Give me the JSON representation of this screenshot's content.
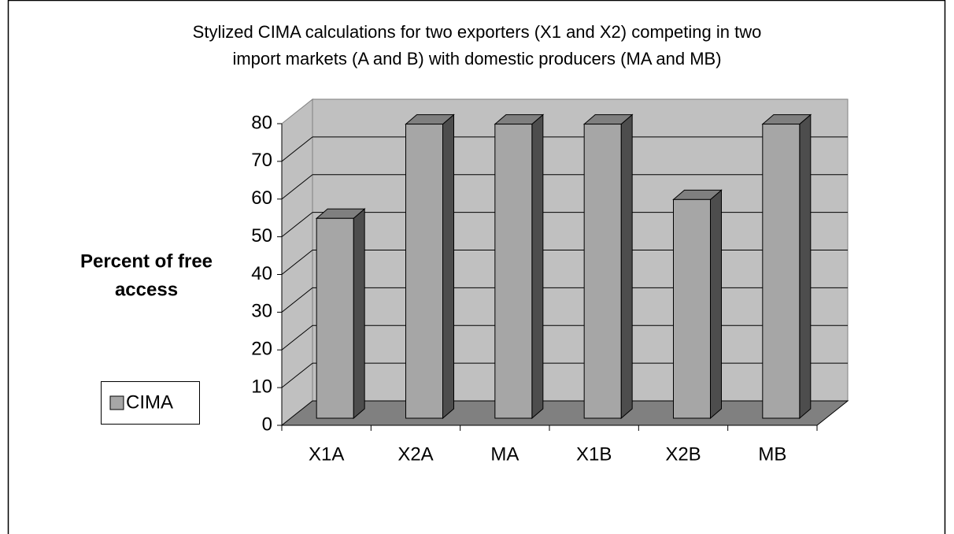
{
  "chart_data": {
    "type": "bar3d",
    "title": [
      "Stylized CIMA calculations for two exporters (X1 and X2) competing in two",
      "import markets (A and B) with domestic producers (MA and MB)"
    ],
    "y_label": [
      "Percent of free",
      "access"
    ],
    "categories": [
      "X1A",
      "X2A",
      "MA",
      "X1B",
      "X2B",
      "MB"
    ],
    "series": [
      {
        "name": "CIMA",
        "color": "#a6a6a6",
        "values": [
          53,
          78,
          78,
          78,
          58,
          78
        ]
      }
    ],
    "ylim": [
      0,
      80
    ],
    "yticks": [
      0,
      10,
      20,
      30,
      40,
      50,
      60,
      70,
      80
    ],
    "grid": true,
    "legend": "left"
  }
}
